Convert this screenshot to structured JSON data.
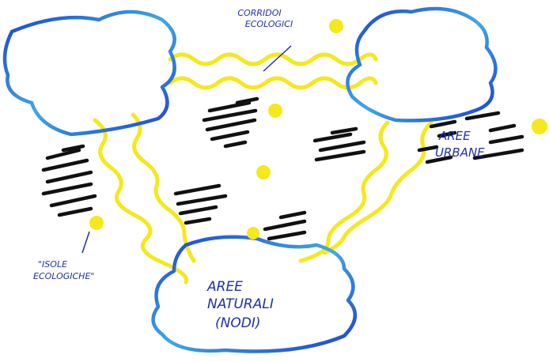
{
  "labels": {
    "corridors": [
      "CORRIDOI",
      "ECOLOGICI"
    ],
    "urban": [
      "AREE",
      "URBANE"
    ],
    "islands": [
      "\"ISOLE",
      "ECOLOGICHE\""
    ],
    "natural": [
      "AREE",
      "NATURALI",
      "(NODI)"
    ]
  }
}
